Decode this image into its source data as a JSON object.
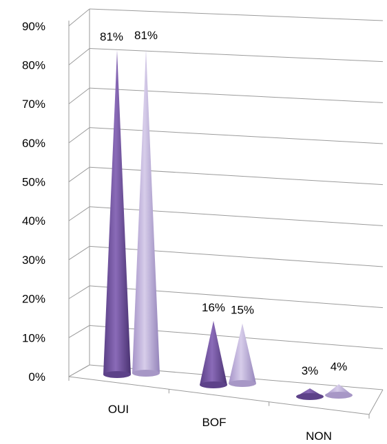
{
  "chart_data": {
    "type": "bar",
    "style": "3d-cone",
    "categories": [
      "OUI",
      "BOF",
      "NON"
    ],
    "series": [
      {
        "values": [
          81,
          16,
          3
        ],
        "color": "#7b5ea7"
      },
      {
        "values": [
          81,
          15,
          4
        ],
        "color": "#b8a9d6"
      }
    ],
    "data_labels": [
      [
        "81%",
        "16%",
        "3%"
      ],
      [
        "81%",
        "15%",
        "4%"
      ]
    ],
    "y_ticks": [
      "0%",
      "10%",
      "20%",
      "30%",
      "40%",
      "50%",
      "60%",
      "70%",
      "80%",
      "90%"
    ],
    "ylim": [
      0,
      90
    ],
    "grid": true,
    "legend": "none"
  }
}
